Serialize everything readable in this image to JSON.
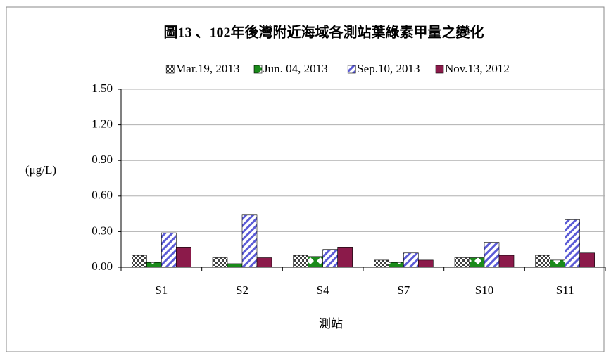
{
  "chart_data": {
    "type": "bar",
    "title": "圖13 、102年後灣附近海域各測站葉綠素甲量之變化",
    "y_label": "(μg/L)",
    "x_label": "測站",
    "categories": [
      "S1",
      "S2",
      "S4",
      "S7",
      "S10",
      "S11"
    ],
    "series": [
      {
        "name": "Mar.19, 2013",
        "color": "#404040",
        "pattern": "checker",
        "values": [
          0.1,
          0.08,
          0.1,
          0.06,
          0.08,
          0.1
        ]
      },
      {
        "name": "Jun. 04, 2013",
        "color": "#1a8a1a",
        "pattern": "diamond",
        "values": [
          0.04,
          0.03,
          0.09,
          0.04,
          0.08,
          0.06
        ]
      },
      {
        "name": "Sep.10, 2013",
        "color": "#5b5bd6",
        "pattern": "stripe",
        "values": [
          0.29,
          0.44,
          0.15,
          0.12,
          0.21,
          0.4
        ]
      },
      {
        "name": "Nov.13, 2012",
        "color": "#8b1a4a",
        "pattern": "solid",
        "values": [
          0.17,
          0.08,
          0.17,
          0.06,
          0.1,
          0.12
        ]
      }
    ],
    "ylim": [
      0,
      1.5
    ],
    "yticks": [
      {
        "value": 0,
        "label": "0.00"
      },
      {
        "value": 0.3,
        "label": "0.30"
      },
      {
        "value": 0.6,
        "label": "0.60"
      },
      {
        "value": 0.9,
        "label": "0.90"
      },
      {
        "value": 1.2,
        "label": "1.20"
      },
      {
        "value": 1.5,
        "label": "1.50"
      }
    ],
    "grid": true,
    "legend": "top"
  }
}
